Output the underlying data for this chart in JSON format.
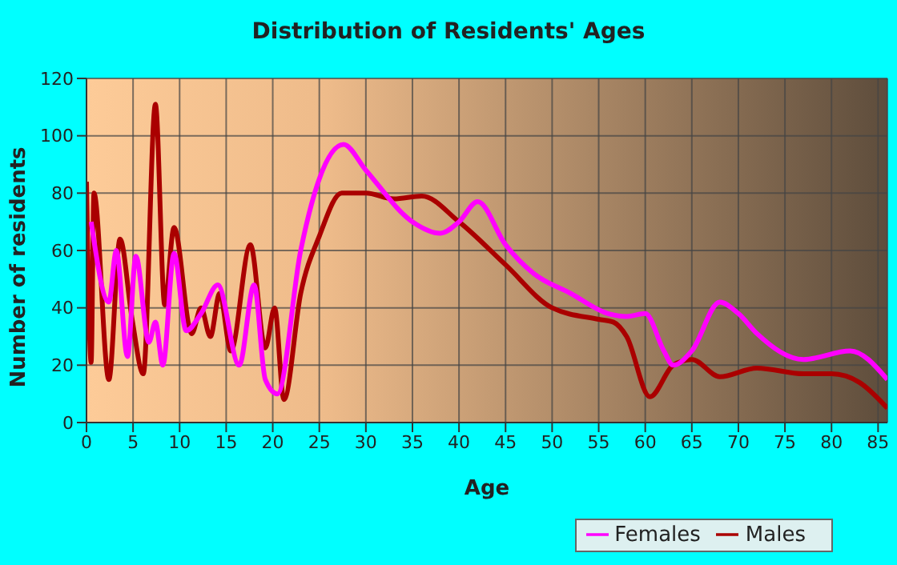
{
  "chart_data": {
    "type": "line",
    "title": "Distribution of Residents' Ages",
    "xlabel": "Age",
    "ylabel": "Number of residents",
    "xlim": [
      0,
      86
    ],
    "xticks": [
      0,
      5,
      10,
      15,
      20,
      25,
      30,
      35,
      40,
      45,
      50,
      55,
      60,
      65,
      70,
      75,
      80,
      85
    ],
    "ylim": [
      0,
      120
    ],
    "yticks": [
      0,
      20,
      40,
      60,
      80,
      100,
      120
    ],
    "grid": true,
    "legend": "bottom right",
    "marker": "none",
    "line_style": "solid",
    "series": [
      {
        "name": "Males",
        "color": "#aa0000",
        "x": [
          0,
          0.5,
          0.8,
          2.4,
          3.6,
          4.9,
          6.1,
          7.4,
          8.4,
          9.4,
          11.3,
          12.3,
          13.3,
          14.3,
          15.5,
          17.6,
          19.2,
          20.2,
          21.2,
          23,
          25,
          27.4,
          28.5,
          30,
          33,
          36,
          40,
          45,
          50,
          55,
          56.6,
          58,
          60.5,
          63,
          65,
          68,
          72,
          77,
          80,
          83,
          86
        ],
        "values": [
          84,
          21,
          80,
          15,
          64,
          36,
          17,
          111,
          41,
          68,
          31,
          40,
          30,
          45,
          25,
          62,
          26,
          40,
          8,
          45,
          65,
          80,
          80,
          80,
          78,
          79,
          70,
          55,
          40,
          36,
          35,
          30,
          9,
          20,
          22,
          16,
          19,
          17,
          17,
          14,
          5
        ]
      },
      {
        "name": "Females",
        "color": "#ff00ff",
        "x": [
          0.5,
          2.4,
          3.2,
          4.4,
          5.3,
          6.7,
          7.4,
          8.2,
          9.4,
          10.7,
          12.3,
          14.1,
          16.4,
          18,
          19.2,
          20.5,
          23,
          25,
          27.6,
          30,
          35,
          38,
          40,
          42,
          45,
          48,
          52,
          56,
          58,
          60,
          62,
          63,
          65,
          68,
          70,
          72,
          77,
          82,
          86
        ],
        "values": [
          70,
          42,
          60,
          23,
          58,
          28,
          35,
          20,
          59,
          32,
          38,
          48,
          20,
          48,
          15,
          10,
          60,
          85,
          97,
          88,
          70,
          66,
          70,
          77,
          62,
          52,
          45,
          38,
          37,
          38,
          25,
          20,
          25,
          42,
          38,
          31,
          22,
          25,
          15
        ]
      }
    ]
  }
}
